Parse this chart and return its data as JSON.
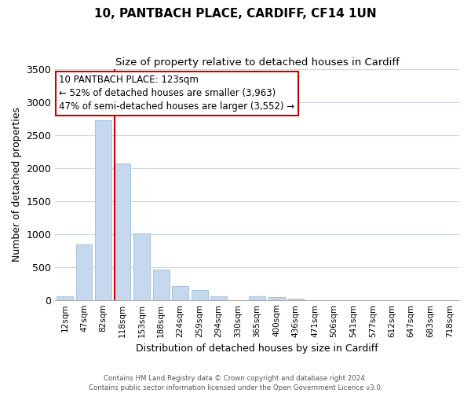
{
  "title": "10, PANTBACH PLACE, CARDIFF, CF14 1UN",
  "subtitle": "Size of property relative to detached houses in Cardiff",
  "xlabel": "Distribution of detached houses by size in Cardiff",
  "ylabel": "Number of detached properties",
  "bar_labels": [
    "12sqm",
    "47sqm",
    "82sqm",
    "118sqm",
    "153sqm",
    "188sqm",
    "224sqm",
    "259sqm",
    "294sqm",
    "330sqm",
    "365sqm",
    "400sqm",
    "436sqm",
    "471sqm",
    "506sqm",
    "541sqm",
    "577sqm",
    "612sqm",
    "647sqm",
    "683sqm",
    "718sqm"
  ],
  "bar_values": [
    55,
    840,
    2720,
    2070,
    1005,
    460,
    215,
    150,
    60,
    0,
    60,
    40,
    25,
    0,
    0,
    0,
    0,
    0,
    0,
    0,
    0
  ],
  "bar_color": "#c5d8ed",
  "bar_edge_color": "#9bbdd6",
  "vline_color": "#cc0000",
  "annotation_title": "10 PANTBACH PLACE: 123sqm",
  "annotation_line1": "← 52% of detached houses are smaller (3,963)",
  "annotation_line2": "47% of semi-detached houses are larger (3,552) →",
  "annotation_box_color": "#ffffff",
  "annotation_box_edge": "#cc0000",
  "ylim": [
    0,
    3500
  ],
  "yticks": [
    0,
    500,
    1000,
    1500,
    2000,
    2500,
    3000,
    3500
  ],
  "footer1": "Contains HM Land Registry data © Crown copyright and database right 2024.",
  "footer2": "Contains public sector information licensed under the Open Government Licence v3.0.",
  "background_color": "#ffffff",
  "grid_color": "#ccd6e8"
}
